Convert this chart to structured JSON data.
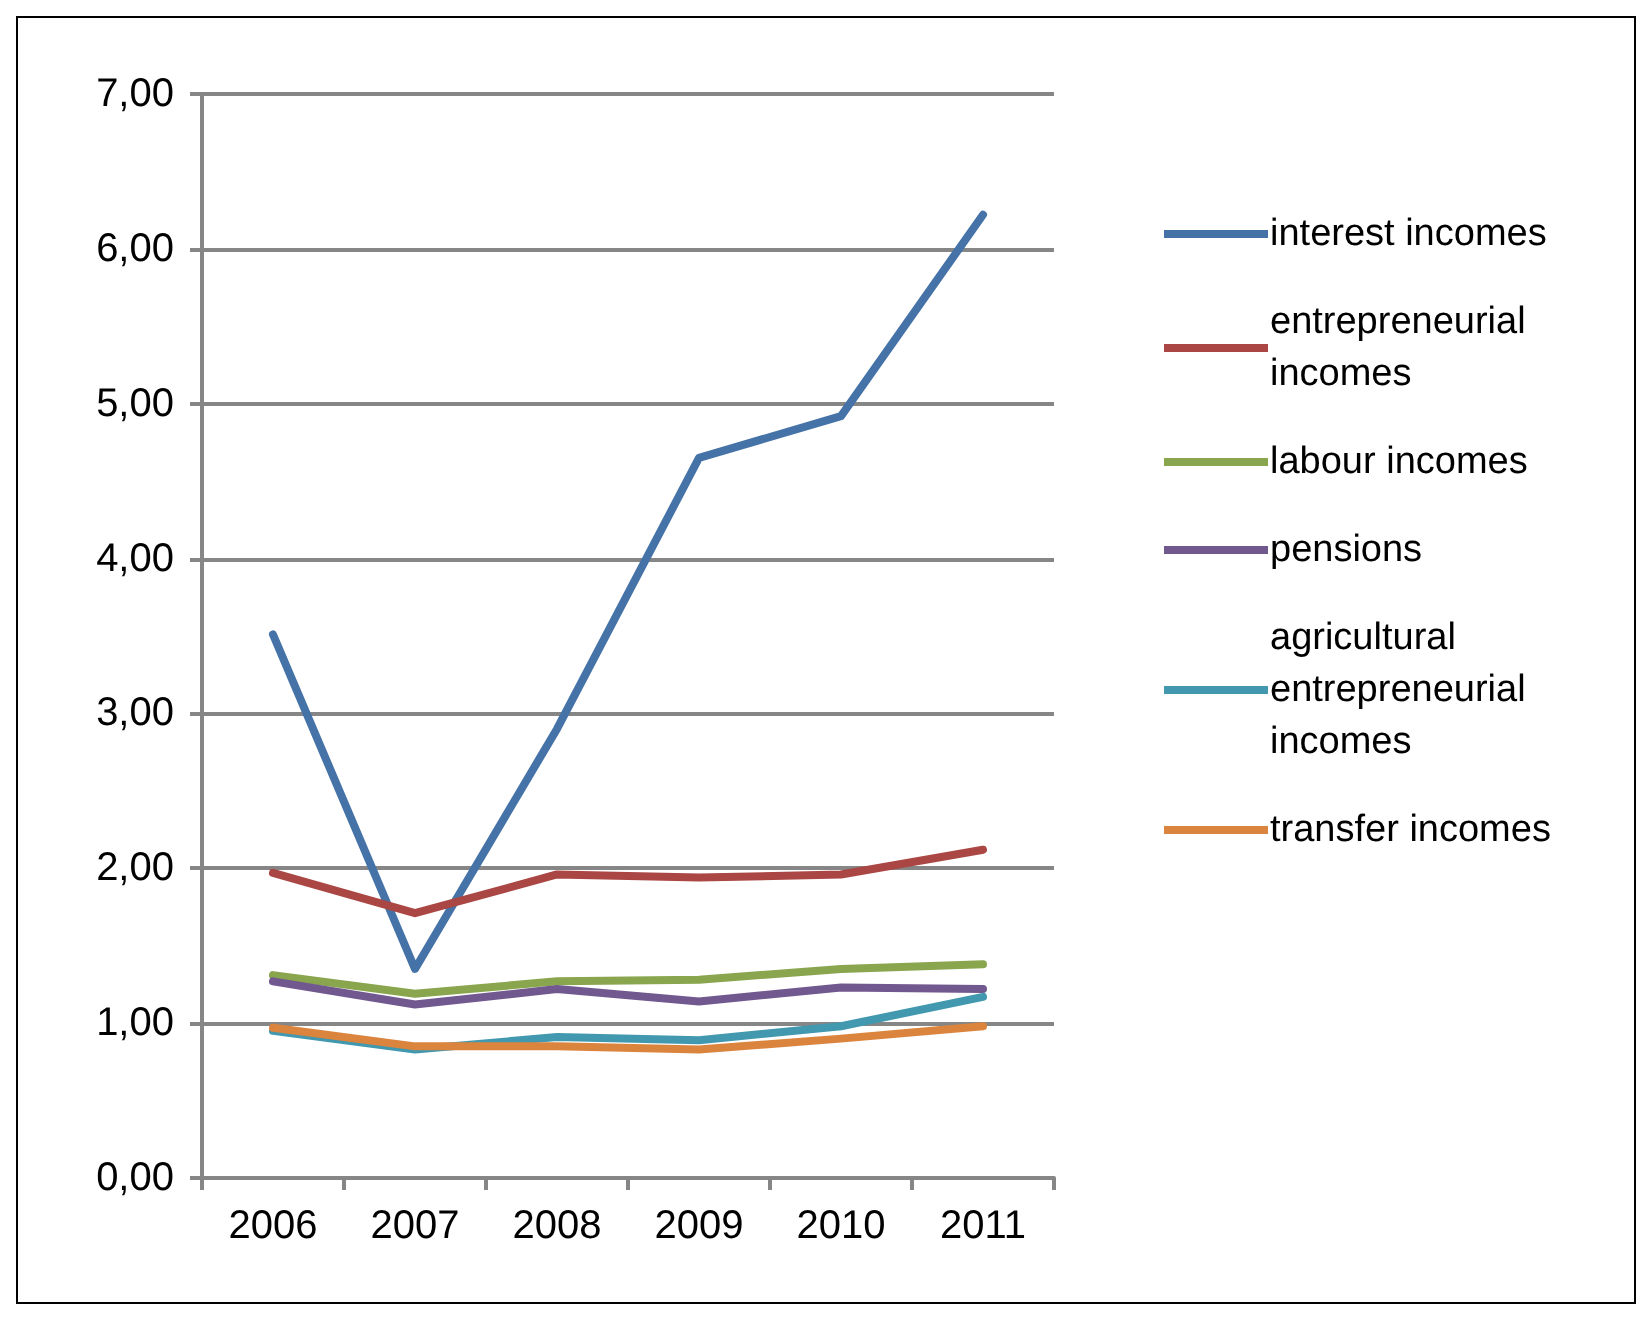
{
  "chart_data": {
    "type": "line",
    "categories": [
      "2006",
      "2007",
      "2008",
      "2009",
      "2010",
      "2011"
    ],
    "series": [
      {
        "name": "interest incomes",
        "color": "#4572a7",
        "values": [
          3.51,
          1.35,
          2.9,
          4.65,
          4.92,
          6.22
        ]
      },
      {
        "name": "entrepreneurial incomes",
        "color": "#aa4643",
        "values": [
          1.97,
          1.71,
          1.96,
          1.94,
          1.96,
          2.12
        ]
      },
      {
        "name": "labour incomes",
        "color": "#89a54e",
        "values": [
          1.31,
          1.19,
          1.27,
          1.28,
          1.35,
          1.38
        ]
      },
      {
        "name": "pensions",
        "color": "#71588f",
        "values": [
          1.27,
          1.12,
          1.22,
          1.14,
          1.23,
          1.22
        ]
      },
      {
        "name": "agricultural entrepreneurial incomes",
        "color": "#4198af",
        "values": [
          0.95,
          0.83,
          0.91,
          0.89,
          0.98,
          1.17
        ]
      },
      {
        "name": "transfer incomes",
        "color": "#db843d",
        "values": [
          0.97,
          0.85,
          0.85,
          0.83,
          0.9,
          0.98
        ]
      }
    ],
    "ylim": [
      0,
      7
    ],
    "yticks": [
      {
        "value": 0,
        "label": "0,00"
      },
      {
        "value": 1,
        "label": "1,00"
      },
      {
        "value": 2,
        "label": "2,00"
      },
      {
        "value": 3,
        "label": "3,00"
      },
      {
        "value": 4,
        "label": "4,00"
      },
      {
        "value": 5,
        "label": "5,00"
      },
      {
        "value": 6,
        "label": "6,00"
      },
      {
        "value": 7,
        "label": "7,00"
      }
    ],
    "grid": "y",
    "legend": "right",
    "marker": "none",
    "line_style": "solid"
  }
}
